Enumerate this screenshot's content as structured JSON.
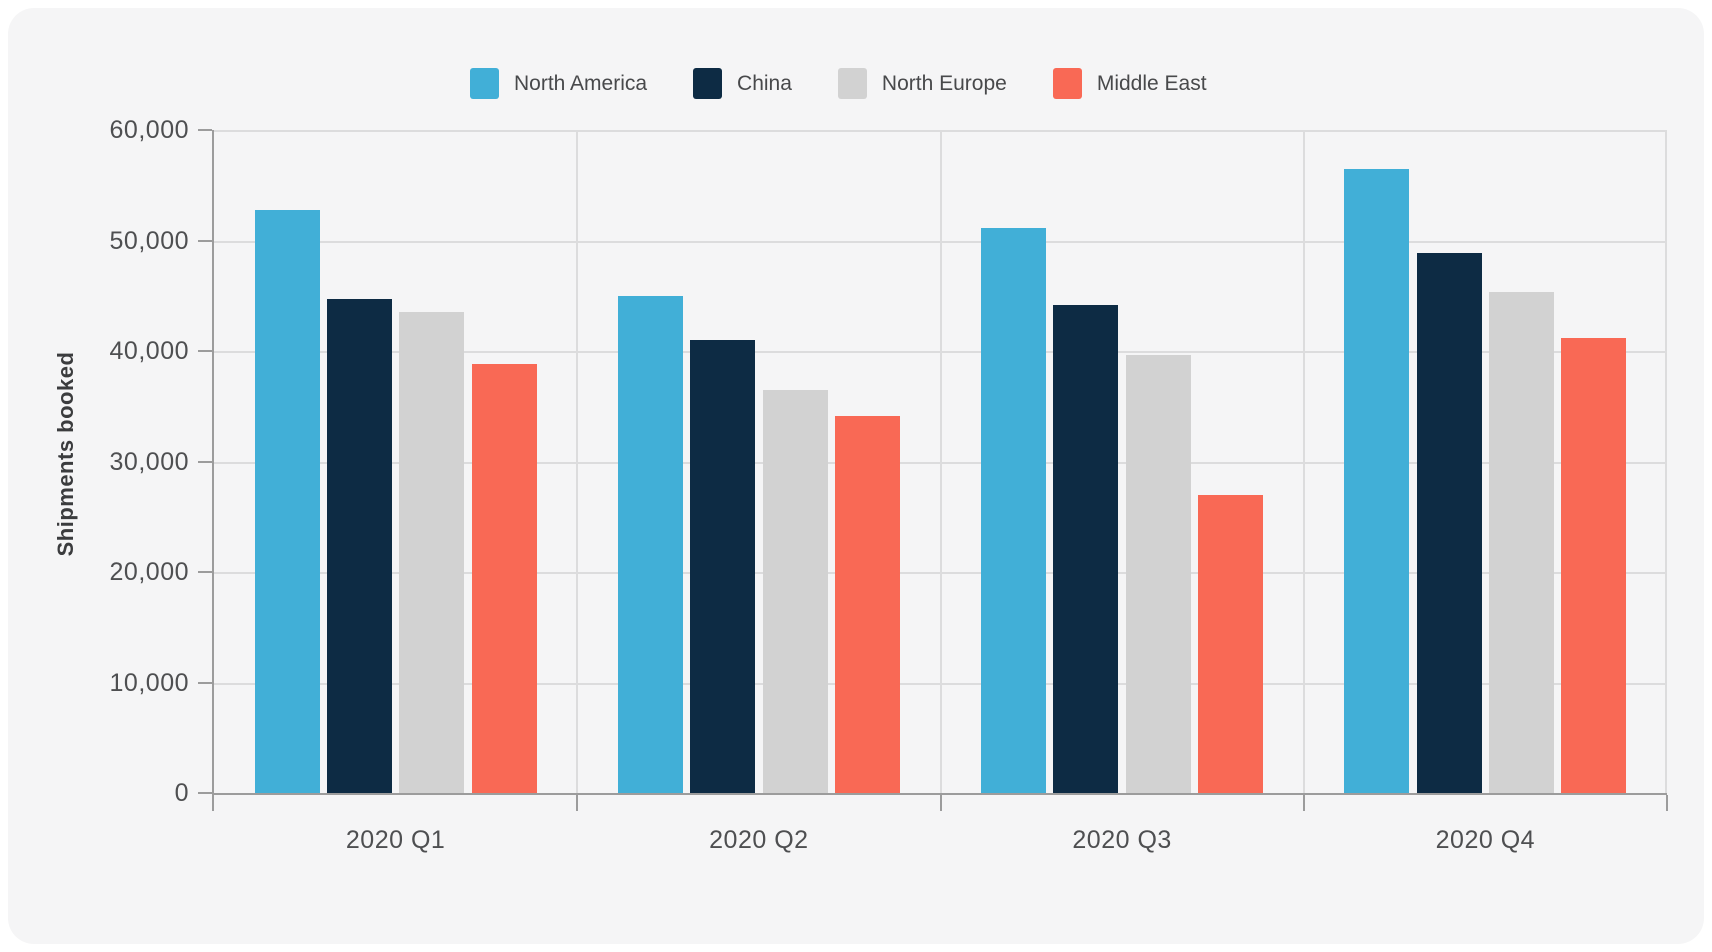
{
  "card": {
    "background": "#f5f5f6"
  },
  "chart_data": {
    "type": "bar",
    "title": "",
    "categories": [
      "2020 Q1",
      "2020 Q2",
      "2020 Q3",
      "2020 Q4"
    ],
    "series": [
      {
        "name": "North America",
        "color": "#41afd7",
        "values": [
          52800,
          45000,
          51100,
          56500
        ]
      },
      {
        "name": "China",
        "color": "#0d2b44",
        "values": [
          44700,
          41000,
          44200,
          48900
        ]
      },
      {
        "name": "North Europe",
        "color": "#d2d2d2",
        "values": [
          43500,
          36500,
          39600,
          45300
        ]
      },
      {
        "name": "Middle East",
        "color": "#f96955",
        "values": [
          38800,
          34100,
          27000,
          41200
        ]
      }
    ],
    "xlabel": "",
    "ylabel": "Shipments booked",
    "ylim": [
      0,
      60000
    ],
    "ytick_step": 10000,
    "ytick_labels": [
      "0",
      "10,000",
      "20,000",
      "30,000",
      "40,000",
      "50,000",
      "60,000"
    ],
    "grid": {
      "horizontal": true,
      "vertical_separators": true,
      "grid_color": "#dcdcdd",
      "axis_color": "#9c9c9c"
    },
    "legend_position": "top"
  }
}
